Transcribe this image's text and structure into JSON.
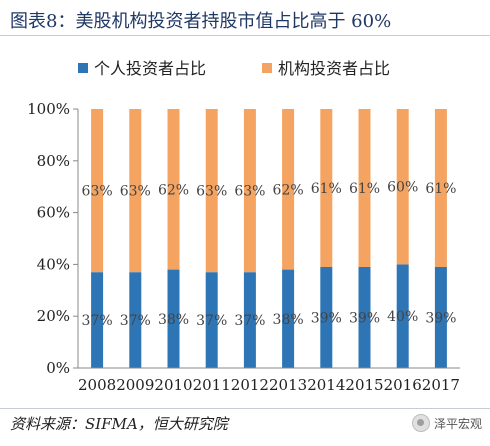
{
  "title": "图表8：美股机构投资者持股市值占比高于 60%",
  "source": "资料来源：SIFMA，恒大研究院",
  "watermark": "泽平宏观",
  "chart_data": {
    "type": "bar",
    "stacked": true,
    "percent_stacked": true,
    "categories": [
      "2008",
      "2009",
      "2010",
      "2011",
      "2012",
      "2013",
      "2014",
      "2015",
      "2016",
      "2017"
    ],
    "series": [
      {
        "name": "个人投资者占比",
        "color": "#2e75b6",
        "values": [
          37,
          37,
          38,
          37,
          37,
          38,
          39,
          39,
          40,
          39
        ],
        "labels": [
          "37%",
          "37%",
          "38%",
          "37%",
          "37%",
          "38%",
          "39%",
          "39%",
          "40%",
          "39%"
        ]
      },
      {
        "name": "机构投资者占比",
        "color": "#f4a460",
        "values": [
          63,
          63,
          62,
          63,
          63,
          62,
          61,
          61,
          60,
          61
        ],
        "labels": [
          "63%",
          "63%",
          "62%",
          "63%",
          "63%",
          "62%",
          "61%",
          "61%",
          "60%",
          "61%"
        ]
      }
    ],
    "ylim": [
      0,
      100
    ],
    "yticks": [
      "0%",
      "20%",
      "40%",
      "60%",
      "80%",
      "100%"
    ],
    "legend": "top",
    "grid": false
  }
}
